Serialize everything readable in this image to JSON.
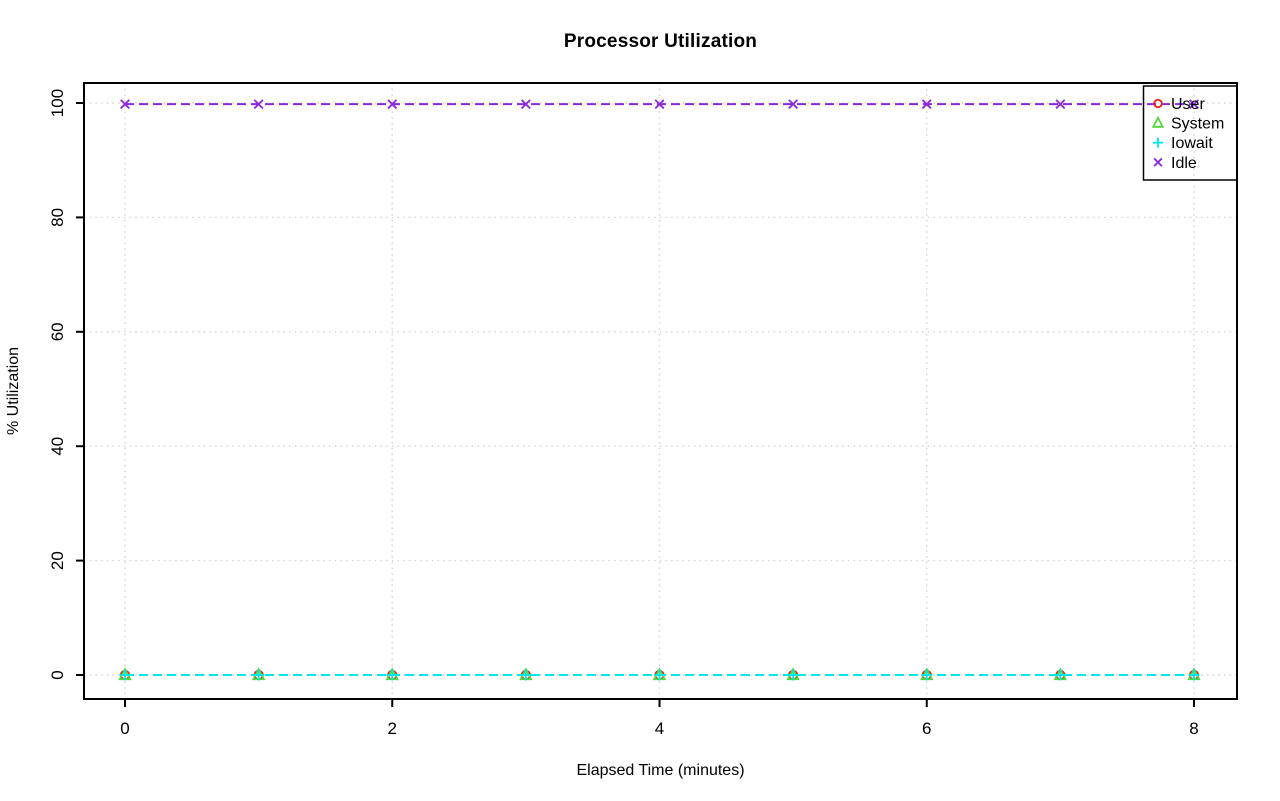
{
  "chart_data": {
    "type": "line",
    "title": "Processor Utilization",
    "xlabel": "Elapsed Time (minutes)",
    "ylabel": "% Utilization",
    "x": [
      0,
      1,
      2,
      3,
      4,
      5,
      6,
      7,
      8
    ],
    "x_tick_labels": [
      0,
      2,
      4,
      6,
      8
    ],
    "y_tick_labels": [
      0,
      20,
      40,
      60,
      80,
      100
    ],
    "xlim": [
      0,
      8
    ],
    "ylim": [
      0,
      100
    ],
    "grid": "dotted lightgray at every tick",
    "line_style": "dashed",
    "legend_position": "top-right",
    "series": [
      {
        "name": "User",
        "marker": "circle",
        "color": "#EB1E19",
        "values": [
          0,
          0,
          0,
          0,
          0,
          0,
          0,
          0,
          0
        ]
      },
      {
        "name": "System",
        "marker": "triangle",
        "color": "#50D73C",
        "values": [
          0,
          0,
          0,
          0,
          0,
          0,
          0,
          0,
          0
        ]
      },
      {
        "name": "Iowait",
        "marker": "plus",
        "color": "#00E6EB",
        "values": [
          0,
          0,
          0,
          0,
          0,
          0,
          0,
          0,
          0
        ]
      },
      {
        "name": "Idle",
        "marker": "x",
        "color": "#8C28DC",
        "values": [
          99.8,
          99.8,
          99.8,
          99.8,
          99.8,
          99.8,
          99.8,
          99.8,
          99.8
        ]
      }
    ],
    "colors": {
      "grid": "#D3D3D3",
      "axis": "#000000",
      "background": "#FFFFFF"
    }
  }
}
